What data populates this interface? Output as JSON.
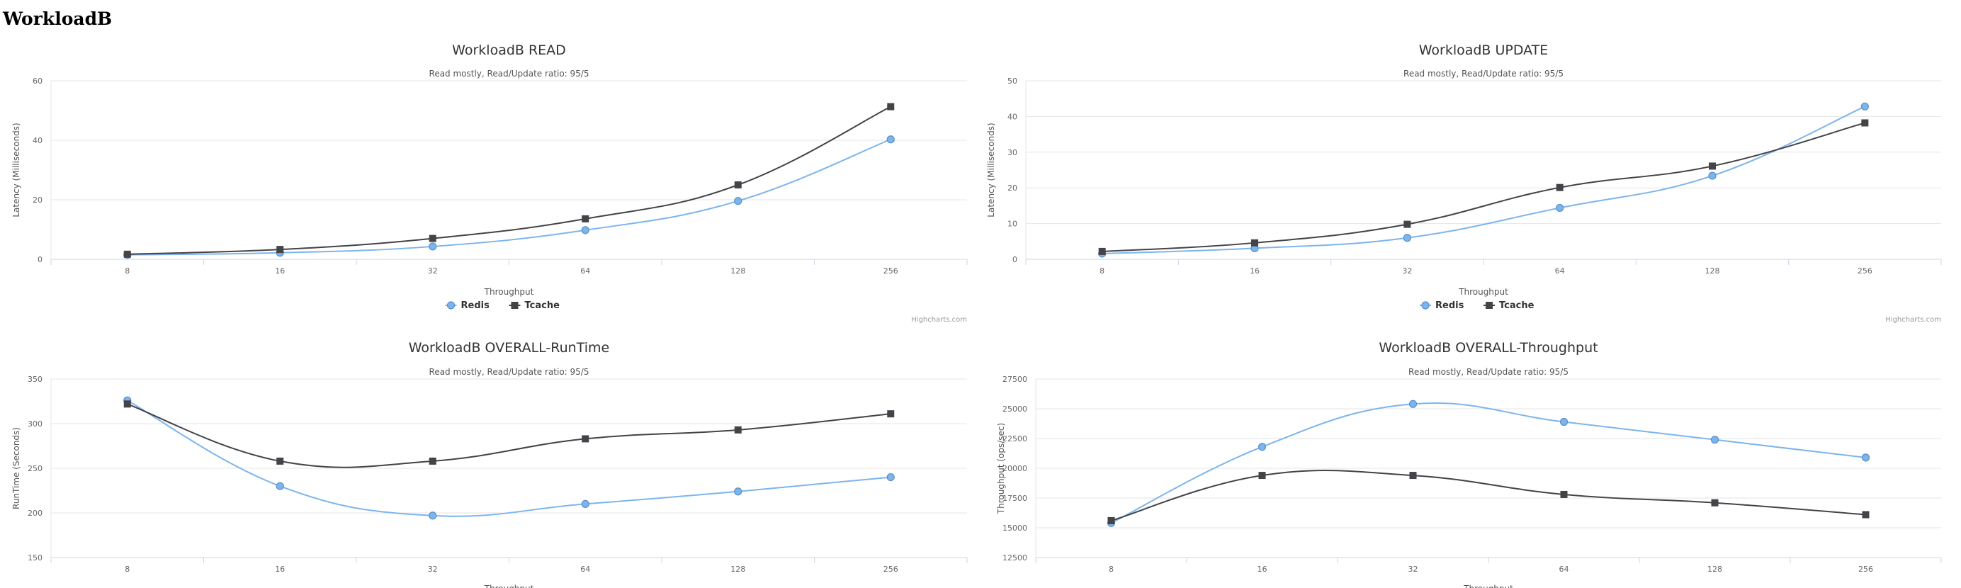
{
  "page": {
    "heading": "WorkloadB"
  },
  "series_style": {
    "Redis": {
      "color": "#7cb5ec",
      "marker": "circle"
    },
    "Tcache": {
      "color": "#434348",
      "marker": "square"
    }
  },
  "chart_data": [
    {
      "type": "line",
      "title": "WorkloadB READ",
      "subtitle": "Read mostly, Read/Update ratio: 95/5",
      "xlabel": "Throughput",
      "ylabel": "Latency (Milliseconds)",
      "categories": [
        "8",
        "16",
        "32",
        "64",
        "128",
        "256"
      ],
      "yticks": [
        0,
        20,
        40,
        60
      ],
      "ylim": [
        0,
        60
      ],
      "grid": true,
      "legend": "bottom-center",
      "credits": "Highcharts.com",
      "series": [
        {
          "name": "Redis",
          "values": [
            1.5,
            2.2,
            4.3,
            9.8,
            19.6,
            40.3
          ]
        },
        {
          "name": "Tcache",
          "values": [
            1.7,
            3.3,
            7.0,
            13.6,
            25.0,
            51.3
          ]
        }
      ]
    },
    {
      "type": "line",
      "title": "WorkloadB UPDATE",
      "subtitle": "Read mostly, Read/Update ratio: 95/5",
      "xlabel": "Throughput",
      "ylabel": "Latency (Milliseconds)",
      "categories": [
        "8",
        "16",
        "32",
        "64",
        "128",
        "256"
      ],
      "yticks": [
        0,
        10,
        20,
        30,
        40,
        50
      ],
      "ylim": [
        0,
        50
      ],
      "grid": true,
      "legend": "bottom-center",
      "credits": "Highcharts.com",
      "series": [
        {
          "name": "Redis",
          "values": [
            1.6,
            3.1,
            6.0,
            14.4,
            23.4,
            42.8
          ]
        },
        {
          "name": "Tcache",
          "values": [
            2.2,
            4.6,
            9.8,
            20.1,
            26.1,
            38.2
          ]
        }
      ]
    },
    {
      "type": "line",
      "title": "WorkloadB OVERALL-RunTime",
      "subtitle": "Read mostly, Read/Update ratio: 95/5",
      "xlabel": "Throughput",
      "ylabel": "RunTime (Seconds)",
      "categories": [
        "8",
        "16",
        "32",
        "64",
        "128",
        "256"
      ],
      "yticks": [
        150,
        200,
        250,
        300,
        350
      ],
      "ylim": [
        150,
        350
      ],
      "grid": true,
      "legend": "bottom-center",
      "series": [
        {
          "name": "Redis",
          "values": [
            326,
            230,
            197,
            210,
            224,
            240
          ]
        },
        {
          "name": "Tcache",
          "values": [
            322,
            258,
            258,
            283,
            293,
            311
          ]
        }
      ]
    },
    {
      "type": "line",
      "title": "WorkloadB OVERALL-Throughput",
      "subtitle": "Read mostly, Read/Update ratio: 95/5",
      "xlabel": "Throughput",
      "ylabel": "Throughput (ops/sec)",
      "categories": [
        "8",
        "16",
        "32",
        "64",
        "128",
        "256"
      ],
      "yticks": [
        12500,
        15000,
        17500,
        20000,
        22500,
        25000,
        27500
      ],
      "ylim": [
        12500,
        27500
      ],
      "grid": true,
      "legend": "bottom-center",
      "series": [
        {
          "name": "Redis",
          "values": [
            15400,
            21800,
            25400,
            23900,
            22400,
            20900
          ]
        },
        {
          "name": "Tcache",
          "values": [
            15600,
            19400,
            19400,
            17800,
            17100,
            16100
          ]
        }
      ]
    }
  ]
}
